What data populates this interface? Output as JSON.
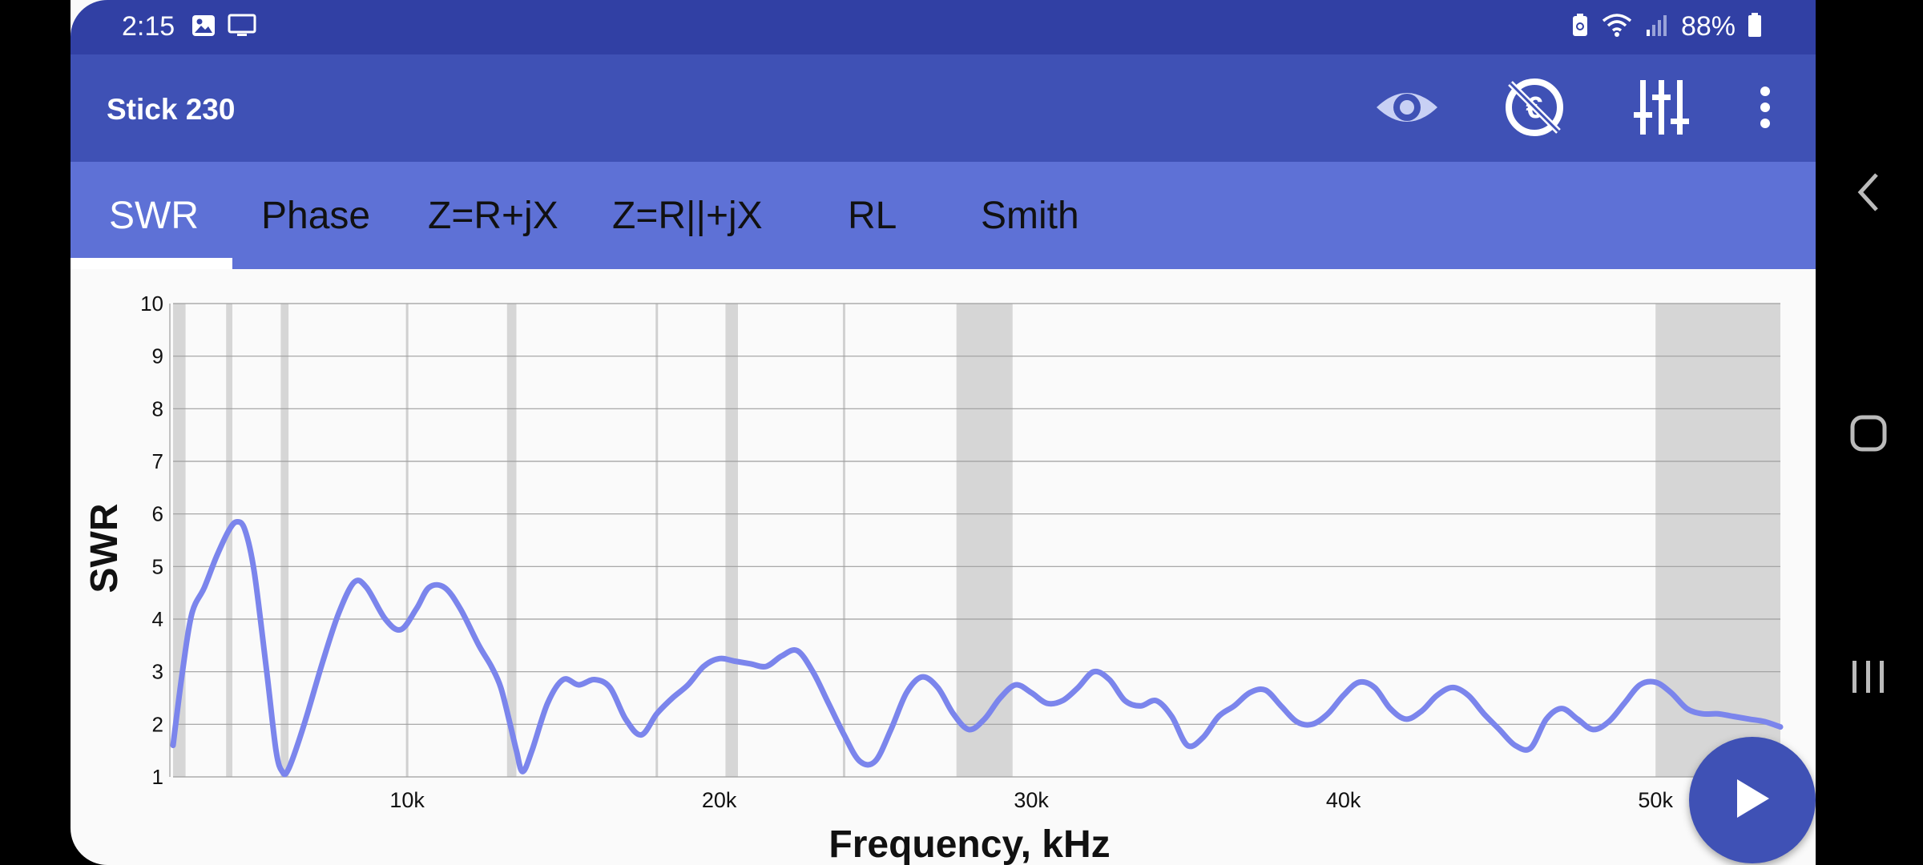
{
  "status": {
    "time": "2:15",
    "battery": "88%"
  },
  "app": {
    "title": "Stick 230"
  },
  "actions": [
    "eye-icon",
    "currency-off-icon",
    "equalizer-icon",
    "more-vert-icon"
  ],
  "tabs": [
    {
      "label": "SWR",
      "active": true
    },
    {
      "label": "Phase"
    },
    {
      "label": "Z=R+jX"
    },
    {
      "label": "Z=R||+jX"
    },
    {
      "label": "RL"
    },
    {
      "label": "Smith"
    }
  ],
  "colors": {
    "status_bar": "#3140a4",
    "app_bar": "#3f51b5",
    "tab_bar": "#5e71d6",
    "series": "#7b85ec",
    "band": "#d6d6d6"
  },
  "chart_data": {
    "type": "line",
    "xlabel": "Frequency, kHz",
    "ylabel": "SWR",
    "xlim": [
      2500,
      54000
    ],
    "ylim": [
      1,
      10
    ],
    "x_ticks": [
      {
        "value": 10000,
        "label": "10k"
      },
      {
        "value": 20000,
        "label": "20k"
      },
      {
        "value": 30000,
        "label": "30k"
      },
      {
        "value": 40000,
        "label": "40k"
      },
      {
        "value": 50000,
        "label": "50k"
      }
    ],
    "y_ticks": [
      1,
      2,
      3,
      4,
      5,
      6,
      7,
      8,
      9,
      10
    ],
    "grid": true,
    "bands_khz": [
      [
        2500,
        2900
      ],
      [
        4200,
        4400
      ],
      [
        5950,
        6200
      ],
      [
        13200,
        13500
      ],
      [
        20200,
        20600
      ],
      [
        27600,
        29400
      ],
      [
        50000,
        54000
      ]
    ],
    "band_lines_khz": [
      10000,
      18000,
      24000
    ],
    "series": [
      {
        "x": [
          2500,
          2800,
          3100,
          3500,
          3900,
          4300,
          4550,
          4800,
          5100,
          5500,
          5800,
          6000,
          6200,
          6700,
          7300,
          7800,
          8300,
          8700,
          9300,
          9800,
          10300,
          10700,
          11200,
          11700,
          12300,
          12700,
          13000,
          13300,
          13500,
          13700,
          14000,
          14500,
          15000,
          15500,
          16000,
          16500,
          17000,
          17500,
          18000,
          18500,
          19000,
          19500,
          20000,
          20500,
          21000,
          21500,
          22000,
          22500,
          23000,
          23500,
          24000,
          24500,
          25000,
          25500,
          26000,
          26500,
          27000,
          27500,
          28000,
          28500,
          29000,
          29500,
          30000,
          30500,
          31000,
          31500,
          32000,
          32500,
          33000,
          33500,
          34000,
          34500,
          35000,
          35500,
          36000,
          36500,
          37000,
          37500,
          38000,
          38500,
          39000,
          39500,
          40000,
          40500,
          41000,
          41500,
          42000,
          42500,
          43000,
          43500,
          44000,
          44500,
          45000,
          45500,
          46000,
          46500,
          47000,
          47500,
          48000,
          48500,
          49000,
          49500,
          50000,
          50500,
          51000,
          51500,
          52000,
          52500,
          53000,
          53500,
          54000
        ],
        "values": [
          1.6,
          3.0,
          4.1,
          4.6,
          5.2,
          5.7,
          5.85,
          5.7,
          4.9,
          3.0,
          1.5,
          1.1,
          1.15,
          2.0,
          3.2,
          4.1,
          4.7,
          4.6,
          4.0,
          3.8,
          4.2,
          4.6,
          4.6,
          4.2,
          3.5,
          3.1,
          2.7,
          2.0,
          1.5,
          1.1,
          1.5,
          2.4,
          2.85,
          2.75,
          2.85,
          2.7,
          2.1,
          1.8,
          2.2,
          2.5,
          2.75,
          3.1,
          3.25,
          3.2,
          3.15,
          3.1,
          3.3,
          3.4,
          3.0,
          2.4,
          1.8,
          1.3,
          1.3,
          1.9,
          2.6,
          2.9,
          2.7,
          2.2,
          1.9,
          2.1,
          2.5,
          2.75,
          2.6,
          2.4,
          2.45,
          2.7,
          3.0,
          2.85,
          2.45,
          2.35,
          2.45,
          2.15,
          1.6,
          1.75,
          2.15,
          2.35,
          2.6,
          2.65,
          2.35,
          2.05,
          2.0,
          2.2,
          2.55,
          2.8,
          2.7,
          2.3,
          2.1,
          2.25,
          2.55,
          2.7,
          2.55,
          2.2,
          1.9,
          1.6,
          1.55,
          2.1,
          2.3,
          2.1,
          1.9,
          2.05,
          2.4,
          2.75,
          2.8,
          2.6,
          2.3,
          2.2,
          2.2,
          2.15,
          2.1,
          2.05,
          1.95
        ]
      }
    ]
  }
}
